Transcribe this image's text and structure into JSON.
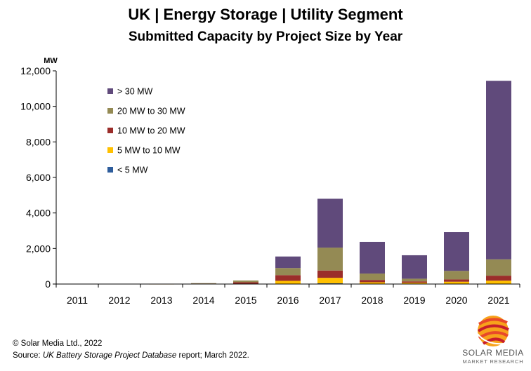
{
  "chart_data": {
    "type": "bar",
    "stacked": true,
    "title": "UK | Energy Storage | Utility Segment",
    "subtitle": "Submitted Capacity by Project Size by Year",
    "ylabel": "MW",
    "ylim": [
      0,
      12000
    ],
    "yticks": [
      "0",
      "2,000",
      "4,000",
      "6,000",
      "8,000",
      "10,000",
      "12,000"
    ],
    "ytick_values": [
      0,
      2000,
      4000,
      6000,
      8000,
      10000,
      12000
    ],
    "categories": [
      "2011",
      "2012",
      "2013",
      "2014",
      "2015",
      "2016",
      "2017",
      "2018",
      "2019",
      "2020",
      "2021"
    ],
    "series": [
      {
        "name": "< 5 MW",
        "color": "#2e5d9c",
        "values": [
          0,
          0,
          0,
          0,
          0,
          15,
          40,
          10,
          10,
          10,
          10
        ]
      },
      {
        "name": "5 MW to 10 MW",
        "color": "#ffc000",
        "values": [
          0,
          0,
          2,
          5,
          20,
          165,
          310,
          90,
          60,
          120,
          180
        ]
      },
      {
        "name": "10 MW to 20 MW",
        "color": "#9b2d2a",
        "values": [
          0,
          0,
          3,
          25,
          80,
          320,
          410,
          130,
          80,
          130,
          280
        ]
      },
      {
        "name": "20 MW to 30 MW",
        "color": "#948a54",
        "values": [
          0,
          0,
          0,
          20,
          100,
          400,
          1290,
          360,
          150,
          480,
          920
        ]
      },
      {
        "name": "> 30 MW",
        "color": "#604a7b",
        "values": [
          0,
          0,
          0,
          0,
          0,
          650,
          2750,
          1780,
          1320,
          2180,
          10050
        ]
      }
    ],
    "legend_position": "top-left",
    "legend_order": [
      "> 30 MW",
      "20 MW to 30 MW",
      "10 MW to 20 MW",
      "5 MW to 10 MW",
      "< 5 MW"
    ],
    "grid": false
  },
  "footer": {
    "copyright": "© Solar Media Ltd., 2022",
    "source_prefix": "Source: ",
    "source_italic": "UK Battery Storage Project Database",
    "source_suffix": " report; March 2022."
  },
  "logo": {
    "name": "SOLAR MEDIA",
    "tagline": "MARKET RESEARCH",
    "colors": [
      "#e8492a",
      "#f7a21b",
      "#c81e2b"
    ]
  }
}
